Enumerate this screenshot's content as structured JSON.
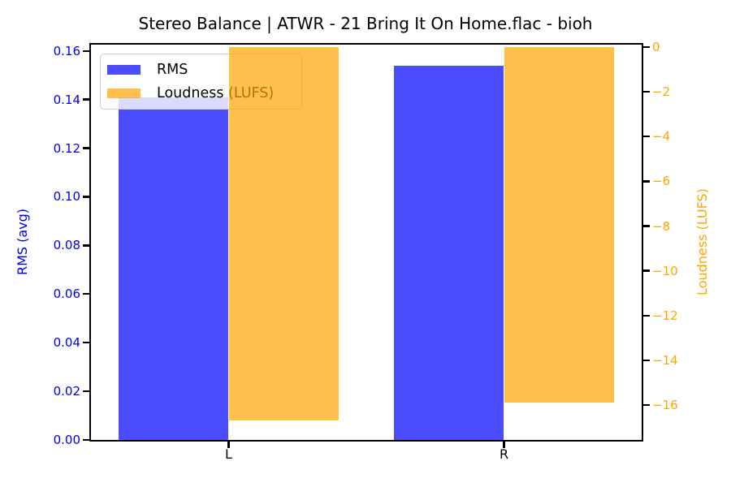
{
  "title": "Stereo Balance | ATWR - 21 Bring It On Home.flac - bioh",
  "chart_data": {
    "type": "bar",
    "title": "Stereo Balance | ATWR - 21 Bring It On Home.flac - bioh",
    "categories": [
      "L",
      "R"
    ],
    "series": [
      {
        "name": "RMS",
        "axis": "left",
        "color": "rgba(0,0,255,0.7)",
        "values": [
          0.141,
          0.154
        ]
      },
      {
        "name": "Loudness (LUFS)",
        "axis": "right",
        "color": "rgba(255,165,0,0.7)",
        "values": [
          -16.7,
          -15.9
        ]
      }
    ],
    "x_axis": {
      "min": -0.5,
      "max": 1.5,
      "tick_positions": [
        0,
        1
      ],
      "tick_labels": [
        "L",
        "R"
      ],
      "color": "#000000"
    },
    "left_axis": {
      "label": "RMS (avg)",
      "color": "#0000ee",
      "min": 0,
      "max": 0.1626,
      "tick_values": [
        0.0,
        0.02,
        0.04,
        0.06,
        0.08,
        0.1,
        0.12,
        0.14,
        0.16
      ],
      "tick_labels": [
        "0.00",
        "0.02",
        "0.04",
        "0.06",
        "0.08",
        "0.10",
        "0.12",
        "0.14",
        "0.16"
      ]
    },
    "right_axis": {
      "label": "Loudness (LUFS)",
      "color": "#ffa500",
      "min": -17.56,
      "max": 0.11,
      "tick_values": [
        0,
        -2,
        -4,
        -6,
        -8,
        -10,
        -12,
        -14,
        -16
      ],
      "tick_labels": [
        "0",
        "−2",
        "−4",
        "−6",
        "−8",
        "−10",
        "−12",
        "−14",
        "−16"
      ]
    },
    "bar_width": 0.4,
    "bar_offsets": [
      -0.2,
      0.2
    ],
    "grid": false,
    "legend": {
      "position": "upper left",
      "labels": [
        "RMS",
        "Loudness (LUFS)"
      ]
    }
  }
}
